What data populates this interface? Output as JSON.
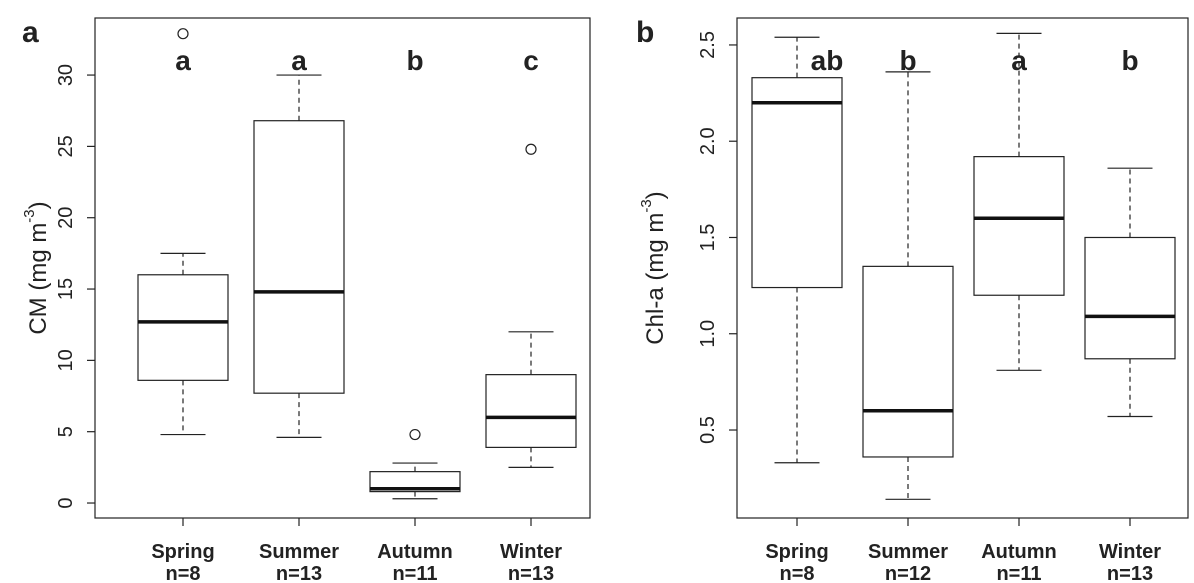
{
  "chart_data": [
    {
      "type": "boxplot",
      "panel_label": "a",
      "ylabel": [
        "CM (mg m",
        "-3",
        ")"
      ],
      "categories": [
        "Spring",
        "Summer",
        "Autumn",
        "Winter"
      ],
      "sample_sizes": [
        "n=8",
        "n=13",
        "n=11",
        "n=13"
      ],
      "annotations": [
        "a",
        "a",
        "b",
        "c"
      ],
      "boxes": [
        {
          "low": 4.8,
          "q1": 8.6,
          "median": 12.7,
          "q3": 16.0,
          "high": 17.5,
          "outliers": [
            32.9
          ]
        },
        {
          "low": 4.6,
          "q1": 7.7,
          "median": 14.8,
          "q3": 26.8,
          "high": 30.0,
          "outliers": []
        },
        {
          "low": 0.3,
          "q1": 0.8,
          "median": 1.0,
          "q3": 2.2,
          "high": 2.8,
          "outliers": [
            4.8
          ]
        },
        {
          "low": 2.5,
          "q1": 3.9,
          "median": 6.0,
          "q3": 9.0,
          "high": 12.0,
          "outliers": [
            24.8
          ]
        }
      ],
      "ylim": [
        -1.05,
        34
      ],
      "yticks": [
        0,
        5,
        10,
        15,
        20,
        25,
        30
      ]
    },
    {
      "type": "boxplot",
      "panel_label": "b",
      "ylabel": [
        "Chl-a (mg m",
        "-3",
        ")"
      ],
      "categories": [
        "Spring",
        "Summer",
        "Autumn",
        "Winter"
      ],
      "sample_sizes": [
        "n=8",
        "n=12",
        "n=11",
        "n=13"
      ],
      "annotations": [
        "ab",
        "b",
        "a",
        "b"
      ],
      "boxes": [
        {
          "low": 0.33,
          "q1": 1.24,
          "median": 2.2,
          "q3": 2.33,
          "high": 2.54,
          "outliers": []
        },
        {
          "low": 0.14,
          "q1": 0.36,
          "median": 0.6,
          "q3": 1.35,
          "high": 2.36,
          "outliers": []
        },
        {
          "low": 0.81,
          "q1": 1.2,
          "median": 1.6,
          "q3": 1.92,
          "high": 2.56,
          "outliers": []
        },
        {
          "low": 0.57,
          "q1": 0.87,
          "median": 1.09,
          "q3": 1.5,
          "high": 1.86,
          "outliers": []
        }
      ],
      "ylim": [
        0.043,
        2.64
      ],
      "yticks": [
        0.5,
        {
          "value": 1,
          "label": "1.0"
        },
        1.5,
        {
          "value": 2,
          "label": "2.0"
        },
        2.5
      ]
    }
  ]
}
